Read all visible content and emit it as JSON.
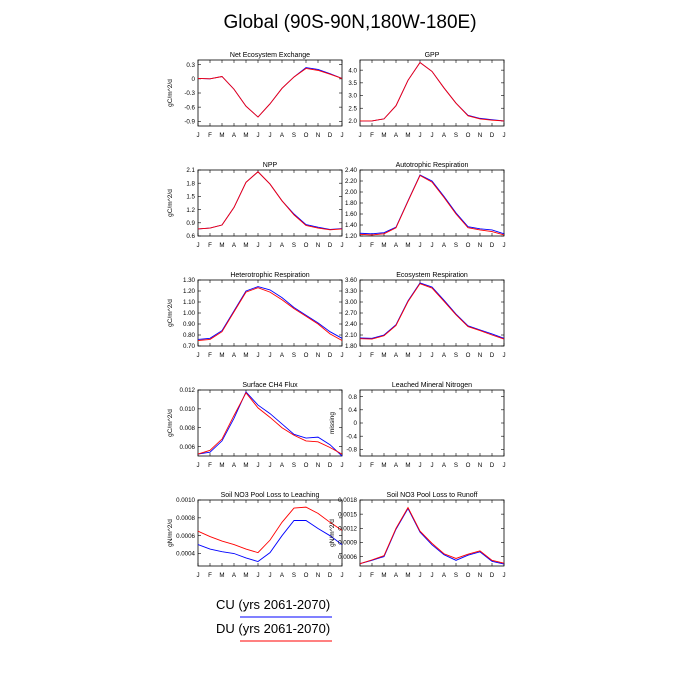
{
  "title": "Global (90S-90N,180W-180E)",
  "months": [
    "J",
    "F",
    "M",
    "A",
    "M",
    "J",
    "J",
    "A",
    "S",
    "O",
    "N",
    "D",
    "J"
  ],
  "colors": {
    "cu": "#0000ff",
    "du": "#ff0000",
    "axis": "#000000"
  },
  "legend": [
    {
      "label": "CU (yrs 2061-2070)",
      "color": "#0000ff"
    },
    {
      "label": "DU (yrs 2061-2070)",
      "color": "#ff0000"
    }
  ],
  "chart_data": [
    {
      "type": "line",
      "title": "Net Ecosystem Exchange",
      "ylabel": "gC/m^2/d",
      "ylim": [
        -1.0,
        0.4
      ],
      "yticks": [
        0.3,
        0.0,
        -0.3,
        -0.6,
        -0.9
      ],
      "ytick_labels": [
        "0.3",
        "0",
        "-0.3",
        "-0.6",
        "-0.9"
      ],
      "series": [
        {
          "values": [
            0.01,
            0.0,
            0.05,
            -0.22,
            -0.58,
            -0.81,
            -0.53,
            -0.2,
            0.04,
            0.24,
            0.2,
            0.11,
            0.01
          ]
        },
        {
          "values": [
            0.01,
            0.0,
            0.05,
            -0.22,
            -0.58,
            -0.81,
            -0.53,
            -0.2,
            0.04,
            0.22,
            0.18,
            0.1,
            0.01
          ]
        }
      ]
    },
    {
      "type": "line",
      "title": "GPP",
      "ylabel": "",
      "ylim": [
        1.8,
        4.4
      ],
      "yticks": [
        4.0,
        3.5,
        3.0,
        2.5,
        2.0
      ],
      "ytick_labels": [
        "4.0",
        "3.5",
        "3.0",
        "2.5",
        "2.0"
      ],
      "series": [
        {
          "values": [
            2.0,
            2.0,
            2.08,
            2.6,
            3.6,
            4.3,
            3.95,
            3.3,
            2.7,
            2.22,
            2.1,
            2.05,
            2.0
          ]
        },
        {
          "values": [
            2.0,
            2.0,
            2.08,
            2.6,
            3.6,
            4.3,
            3.95,
            3.3,
            2.7,
            2.2,
            2.08,
            2.03,
            2.0
          ]
        }
      ]
    },
    {
      "type": "line",
      "title": "NPP",
      "ylabel": "gC/m^2/d",
      "ylim": [
        0.6,
        2.1
      ],
      "yticks": [
        2.1,
        1.8,
        1.5,
        1.2,
        0.9,
        0.6
      ],
      "ytick_labels": [
        "2.1",
        "1.8",
        "1.5",
        "1.2",
        "0.9",
        "0.6"
      ],
      "series": [
        {
          "values": [
            0.76,
            0.78,
            0.85,
            1.25,
            1.82,
            2.06,
            1.78,
            1.4,
            1.1,
            0.86,
            0.8,
            0.75,
            0.77
          ]
        },
        {
          "values": [
            0.76,
            0.78,
            0.85,
            1.25,
            1.82,
            2.06,
            1.78,
            1.4,
            1.08,
            0.84,
            0.78,
            0.74,
            0.76
          ]
        }
      ]
    },
    {
      "type": "line",
      "title": "Autotrophic Respiration",
      "ylabel": "",
      "ylim": [
        1.2,
        2.4
      ],
      "yticks": [
        2.4,
        2.2,
        2.0,
        1.8,
        1.6,
        1.4,
        1.2
      ],
      "ytick_labels": [
        "2.40",
        "2.20",
        "2.00",
        "1.80",
        "1.60",
        "1.40",
        "1.20"
      ],
      "series": [
        {
          "values": [
            1.25,
            1.24,
            1.26,
            1.36,
            1.84,
            2.31,
            2.2,
            1.92,
            1.62,
            1.37,
            1.33,
            1.31,
            1.24
          ]
        },
        {
          "values": [
            1.23,
            1.22,
            1.24,
            1.35,
            1.83,
            2.3,
            2.18,
            1.9,
            1.6,
            1.35,
            1.31,
            1.28,
            1.22
          ]
        }
      ]
    },
    {
      "type": "line",
      "title": "Heterotrophic Respiration",
      "ylabel": "gC/m^2/d",
      "ylim": [
        0.7,
        1.3
      ],
      "yticks": [
        1.3,
        1.2,
        1.1,
        1.0,
        0.9,
        0.8,
        0.7
      ],
      "ytick_labels": [
        "1.30",
        "1.20",
        "1.10",
        "1.00",
        "0.90",
        "0.80",
        "0.70"
      ],
      "series": [
        {
          "values": [
            0.76,
            0.77,
            0.84,
            1.02,
            1.2,
            1.24,
            1.21,
            1.14,
            1.05,
            0.98,
            0.91,
            0.83,
            0.77
          ]
        },
        {
          "values": [
            0.75,
            0.76,
            0.83,
            1.01,
            1.19,
            1.23,
            1.19,
            1.12,
            1.04,
            0.97,
            0.9,
            0.81,
            0.75
          ]
        }
      ]
    },
    {
      "type": "line",
      "title": "Ecosystem Respiration",
      "ylabel": "",
      "ylim": [
        1.8,
        3.6
      ],
      "yticks": [
        3.6,
        3.3,
        3.0,
        2.7,
        2.4,
        2.1,
        1.8
      ],
      "ytick_labels": [
        "3.60",
        "3.30",
        "3.00",
        "2.70",
        "2.40",
        "2.10",
        "1.80"
      ],
      "series": [
        {
          "values": [
            2.02,
            2.01,
            2.1,
            2.38,
            3.03,
            3.52,
            3.41,
            3.05,
            2.67,
            2.35,
            2.24,
            2.13,
            2.01
          ]
        },
        {
          "values": [
            2.0,
            1.99,
            2.08,
            2.36,
            3.01,
            3.5,
            3.38,
            3.02,
            2.65,
            2.33,
            2.22,
            2.1,
            1.99
          ]
        }
      ]
    },
    {
      "type": "line",
      "title": "Surface CH4 Flux",
      "ylabel": "gC/m^2/d",
      "ylim": [
        0.005,
        0.012
      ],
      "yticks": [
        0.012,
        0.01,
        0.008,
        0.006
      ],
      "ytick_labels": [
        "0.012",
        "0.010",
        "0.008",
        "0.006"
      ],
      "series": [
        {
          "values": [
            0.0052,
            0.0054,
            0.0066,
            0.009,
            0.0118,
            0.0104,
            0.0095,
            0.0084,
            0.0073,
            0.0069,
            0.007,
            0.0062,
            0.005
          ]
        },
        {
          "values": [
            0.0052,
            0.0056,
            0.0068,
            0.0093,
            0.0117,
            0.0101,
            0.0091,
            0.008,
            0.0072,
            0.0066,
            0.0065,
            0.0059,
            0.0052
          ]
        }
      ]
    },
    {
      "type": "line",
      "title": "Leached Mineral Nitrogen",
      "ylabel": "missing",
      "ylim": [
        -1.0,
        1.0
      ],
      "yticks": [
        0.8,
        0.4,
        0.0,
        -0.4,
        -0.8
      ],
      "ytick_labels": [
        "0.8",
        "0.4",
        "0",
        "-0.4",
        "-0.8"
      ],
      "series": []
    },
    {
      "type": "line",
      "title": "Soil NO3 Pool Loss to Leaching",
      "ylabel": "gN/m^2/d",
      "ylim": [
        0.00026,
        0.001
      ],
      "yticks": [
        0.001,
        0.0008,
        0.0006,
        0.0004
      ],
      "ytick_labels": [
        "0.0010",
        "0.0008",
        "0.0006",
        "0.0004"
      ],
      "series": [
        {
          "values": [
            0.0005,
            0.00045,
            0.00042,
            0.0004,
            0.00035,
            0.00031,
            0.00041,
            0.0006,
            0.00077,
            0.00077,
            0.00068,
            0.0006,
            0.0005
          ]
        },
        {
          "values": [
            0.00065,
            0.00059,
            0.00054,
            0.0005,
            0.00045,
            0.00041,
            0.00055,
            0.00075,
            0.00091,
            0.00092,
            0.00085,
            0.00075,
            0.00066
          ]
        }
      ]
    },
    {
      "type": "line",
      "title": "Soil NO3 Pool Loss to Runoff",
      "ylabel": "gN/m^2/d",
      "ylim": [
        0.0004,
        0.0018
      ],
      "yticks": [
        0.0018,
        0.0015,
        0.0012,
        0.0009,
        0.0006
      ],
      "ytick_labels": [
        "0.0018",
        "0.0015",
        "0.0012",
        "0.0009",
        "0.0006"
      ],
      "series": [
        {
          "values": [
            0.00045,
            0.00052,
            0.0006,
            0.00118,
            0.00162,
            0.00112,
            0.00085,
            0.00064,
            0.00052,
            0.00063,
            0.0007,
            0.0005,
            0.00044
          ]
        },
        {
          "values": [
            0.00045,
            0.00053,
            0.00062,
            0.0012,
            0.00164,
            0.00114,
            0.00088,
            0.00066,
            0.00056,
            0.00065,
            0.00072,
            0.00052,
            0.00046
          ]
        }
      ]
    }
  ]
}
